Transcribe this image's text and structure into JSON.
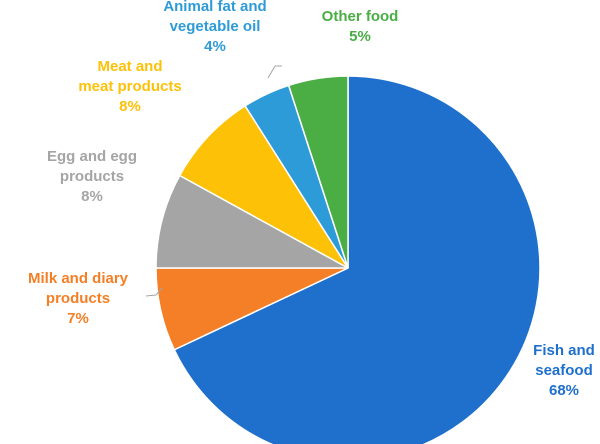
{
  "chart_data": {
    "type": "pie",
    "title": "",
    "slices": [
      {
        "label_lines": [
          "Fish and",
          "seafood"
        ],
        "value": 68,
        "value_label": "68%",
        "color": "#1F6FCC"
      },
      {
        "label_lines": [
          "Milk and diary",
          "products"
        ],
        "value": 7,
        "value_label": "7%",
        "color": "#F47F26"
      },
      {
        "label_lines": [
          "Egg and egg",
          "products"
        ],
        "value": 8,
        "value_label": "8%",
        "color": "#A5A5A5"
      },
      {
        "label_lines": [
          "Meat and",
          "meat products"
        ],
        "value": 8,
        "value_label": "8%",
        "color": "#FDC108"
      },
      {
        "label_lines": [
          "Animal fat and",
          "vegetable oil"
        ],
        "value": 4,
        "value_label": "4%",
        "color": "#2E9BD9"
      },
      {
        "label_lines": [
          "Other food"
        ],
        "value": 5,
        "value_label": "5%",
        "color": "#4AAE45"
      }
    ],
    "start_angle_deg": 0,
    "direction": "clockwise",
    "legend": "none",
    "leader_line_color": "#A5A5A5"
  }
}
